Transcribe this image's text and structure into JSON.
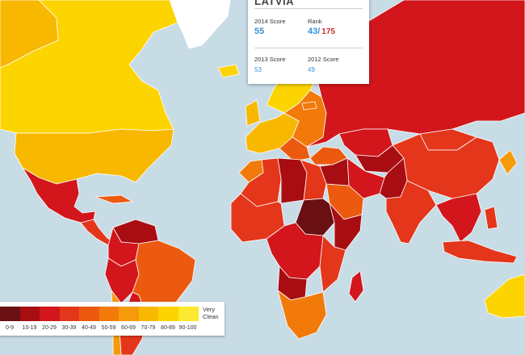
{
  "popup": {
    "country": "LATVIA",
    "score_2014_label": "2014 Score",
    "score_2014": "55",
    "rank_label": "Rank",
    "rank": "43/",
    "rank_total": "175",
    "score_2013_label": "2013 Score",
    "score_2013": "53",
    "score_2012_label": "2012 Score",
    "score_2012": "49"
  },
  "legend": {
    "ranges": [
      "0-9",
      "10-19",
      "20-29",
      "30-39",
      "40-49",
      "50-59",
      "60-69",
      "70-79",
      "80-89",
      "90-100"
    ],
    "colors": [
      "#6a0f12",
      "#a80d12",
      "#d2161c",
      "#e4361a",
      "#ec5a10",
      "#f27a0a",
      "#f59a08",
      "#f8b800",
      "#fcd400",
      "#fde930"
    ],
    "clean_line1": "Very",
    "clean_line2": "Clean"
  },
  "colors": {
    "ocean": "#c8dce6",
    "greenland": "#ffffff",
    "score_blue": "#3a92d8",
    "rank_red": "#d0302a"
  }
}
